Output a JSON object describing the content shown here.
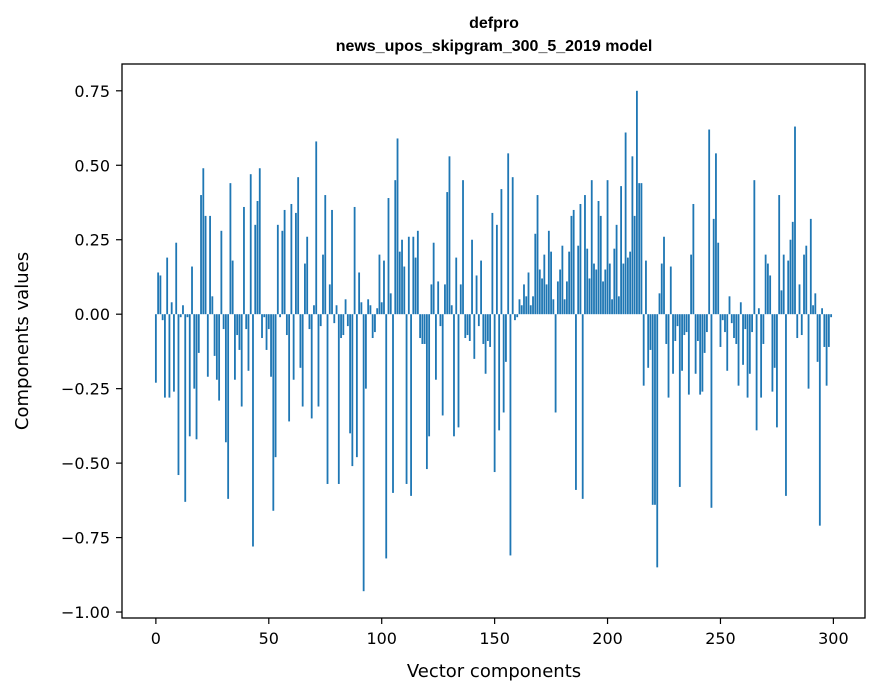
{
  "chart_data": {
    "type": "bar",
    "title": "defpro",
    "subtitle": "news_upos_skipgram_300_5_2019 model",
    "xlabel": "Vector components",
    "ylabel": "Components values",
    "xlim": [
      -15,
      314
    ],
    "ylim": [
      -1.02,
      0.84
    ],
    "xticks": [
      0,
      50,
      100,
      150,
      200,
      250,
      300
    ],
    "xtick_labels": [
      "0",
      "50",
      "100",
      "150",
      "200",
      "250",
      "300"
    ],
    "yticks": [
      -1.0,
      -0.75,
      -0.5,
      -0.25,
      0.0,
      0.25,
      0.5,
      0.75
    ],
    "ytick_labels": [
      "−1.00",
      "−0.75",
      "−0.50",
      "−0.25",
      "0.00",
      "0.25",
      "0.50",
      "0.75"
    ],
    "bar_color": "#1f77b4",
    "values": [
      -0.23,
      0.14,
      0.13,
      -0.02,
      -0.28,
      0.19,
      -0.28,
      0.04,
      -0.26,
      0.24,
      -0.54,
      -0.01,
      0.03,
      -0.63,
      -0.01,
      -0.41,
      0.16,
      -0.25,
      -0.42,
      -0.13,
      0.4,
      0.49,
      0.33,
      -0.21,
      0.33,
      0.06,
      -0.14,
      -0.22,
      -0.29,
      0.28,
      -0.05,
      -0.43,
      -0.62,
      0.44,
      0.18,
      -0.22,
      -0.07,
      -0.12,
      -0.31,
      0.36,
      -0.05,
      -0.19,
      0.47,
      -0.78,
      0.3,
      0.38,
      0.49,
      -0.08,
      -0.01,
      -0.12,
      -0.05,
      -0.21,
      -0.66,
      -0.48,
      0.3,
      -0.01,
      0.28,
      0.35,
      -0.07,
      -0.36,
      0.37,
      -0.22,
      0.34,
      0.46,
      -0.18,
      -0.31,
      0.17,
      0.26,
      -0.05,
      -0.35,
      0.03,
      0.58,
      -0.31,
      -0.04,
      0.2,
      0.4,
      -0.57,
      0.1,
      0.35,
      -0.03,
      0.03,
      -0.57,
      -0.08,
      -0.07,
      0.05,
      -0.04,
      -0.4,
      -0.51,
      0.36,
      -0.48,
      0.14,
      0.04,
      -0.93,
      -0.25,
      0.05,
      0.03,
      -0.08,
      -0.06,
      0.02,
      0.2,
      0.04,
      0.18,
      -0.82,
      0.39,
      0.07,
      -0.6,
      0.45,
      0.59,
      0.21,
      0.25,
      0.16,
      -0.57,
      0.26,
      -0.61,
      0.26,
      0.19,
      0.28,
      -0.08,
      -0.1,
      -0.1,
      -0.52,
      -0.41,
      0.1,
      0.24,
      -0.22,
      0.11,
      -0.04,
      -0.34,
      0.1,
      0.41,
      0.53,
      0.03,
      -0.41,
      0.19,
      -0.38,
      0.1,
      0.45,
      -0.08,
      -0.07,
      -0.09,
      0.25,
      -0.15,
      0.13,
      -0.04,
      0.18,
      -0.1,
      -0.2,
      -0.09,
      -0.11,
      0.34,
      -0.53,
      0.3,
      -0.39,
      0.42,
      -0.33,
      -0.16,
      0.54,
      -0.81,
      0.46,
      -0.02,
      -0.01,
      0.05,
      0.03,
      0.1,
      0.06,
      0.14,
      0.03,
      0.06,
      0.27,
      0.4,
      0.15,
      0.12,
      0.2,
      0.1,
      0.28,
      0.21,
      0.05,
      -0.33,
      0.11,
      0.15,
      0.23,
      0.05,
      0.11,
      0.21,
      0.33,
      0.35,
      -0.59,
      0.23,
      0.37,
      -0.62,
      0.4,
      0.22,
      0.12,
      0.45,
      0.17,
      0.15,
      0.38,
      0.33,
      0.11,
      0.15,
      0.45,
      0.17,
      0.05,
      0.22,
      0.3,
      0.06,
      0.43,
      0.17,
      0.61,
      0.19,
      0.21,
      0.53,
      0.33,
      0.75,
      0.44,
      0.44,
      -0.24,
      0.18,
      -0.18,
      -0.12,
      -0.64,
      -0.64,
      -0.85,
      0.07,
      0.17,
      0.26,
      -0.1,
      -0.28,
      0.16,
      -0.2,
      -0.09,
      -0.04,
      -0.58,
      -0.19,
      -0.07,
      -0.06,
      -0.27,
      0.2,
      0.37,
      -0.2,
      -0.09,
      -0.27,
      -0.26,
      -0.13,
      -0.06,
      0.62,
      -0.65,
      0.32,
      0.54,
      0.24,
      -0.11,
      -0.02,
      -0.06,
      -0.19,
      0.06,
      -0.03,
      -0.08,
      -0.1,
      -0.24,
      0.04,
      -0.17,
      -0.05,
      -0.28,
      -0.2,
      -0.06,
      0.45,
      -0.39,
      0.02,
      -0.28,
      -0.1,
      0.2,
      0.17,
      0.13,
      -0.26,
      -0.18,
      -0.38,
      0.4,
      0.08,
      0.2,
      -0.61,
      0.18,
      0.25,
      0.31,
      0.63,
      -0.08,
      0.1,
      -0.07,
      0.2,
      0.23,
      -0.25,
      0.32,
      0.03,
      0.07,
      -0.16,
      -0.71,
      0.02,
      -0.11,
      -0.24,
      -0.11,
      -0.01
    ]
  }
}
